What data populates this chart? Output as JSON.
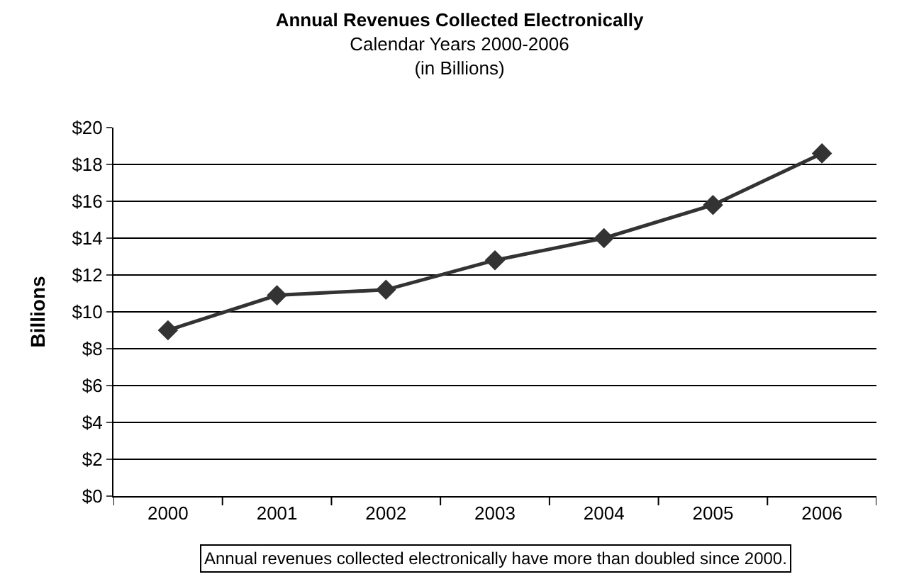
{
  "chart_data": {
    "type": "line",
    "title": "Annual Revenues Collected Electronically",
    "subtitle": "Calendar Years 2000-2006\n(in Billions)",
    "ylabel": "Billions",
    "categories": [
      "2000",
      "2001",
      "2002",
      "2003",
      "2004",
      "2005",
      "2006"
    ],
    "series": [
      {
        "color": "#333333",
        "values": [
          9.0,
          10.9,
          11.2,
          12.8,
          14.0,
          15.8,
          18.6
        ]
      }
    ],
    "ylim": [
      0,
      20
    ],
    "yticks": [
      {
        "value": 0,
        "label": "$0"
      },
      {
        "value": 2,
        "label": "$2"
      },
      {
        "value": 4,
        "label": "$4"
      },
      {
        "value": 6,
        "label": "$6"
      },
      {
        "value": 8,
        "label": "$8"
      },
      {
        "value": 10,
        "label": "$10"
      },
      {
        "value": 12,
        "label": "$12"
      },
      {
        "value": 14,
        "label": "$14"
      },
      {
        "value": 16,
        "label": "$16"
      },
      {
        "value": 18,
        "label": "$18"
      },
      {
        "value": 20,
        "label": "$20"
      }
    ],
    "grid": "y",
    "marker": "diamond",
    "line_style": "solid",
    "annotations": [
      "Annual revenues collected electronically have more than doubled since 2000."
    ]
  }
}
